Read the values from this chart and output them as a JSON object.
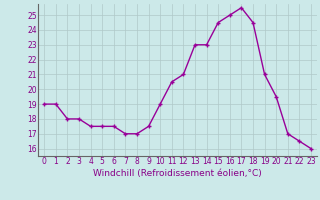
{
  "x": [
    0,
    1,
    2,
    3,
    4,
    5,
    6,
    7,
    8,
    9,
    10,
    11,
    12,
    13,
    14,
    15,
    16,
    17,
    18,
    19,
    20,
    21,
    22,
    23
  ],
  "y": [
    19,
    19,
    18,
    18,
    17.5,
    17.5,
    17.5,
    17,
    17,
    17.5,
    19,
    20.5,
    21,
    23,
    23,
    24.5,
    25,
    25.5,
    24.5,
    21,
    19.5,
    17,
    16.5,
    16
  ],
  "line_color": "#990099",
  "marker": "+",
  "markersize": 3,
  "linewidth": 1,
  "xlabel": "Windchill (Refroidissement éolien,°C)",
  "ylim": [
    15.5,
    25.75
  ],
  "xlim": [
    -0.5,
    23.5
  ],
  "yticks": [
    16,
    17,
    18,
    19,
    20,
    21,
    22,
    23,
    24,
    25
  ],
  "xticks": [
    0,
    1,
    2,
    3,
    4,
    5,
    6,
    7,
    8,
    9,
    10,
    11,
    12,
    13,
    14,
    15,
    16,
    17,
    18,
    19,
    20,
    21,
    22,
    23
  ],
  "bg_color": "#cce9e9",
  "grid_color": "#b0c8c8",
  "tick_label_color": "#880088",
  "axis_label_color": "#880088",
  "tick_fontsize": 5.5,
  "xlabel_fontsize": 6.5
}
